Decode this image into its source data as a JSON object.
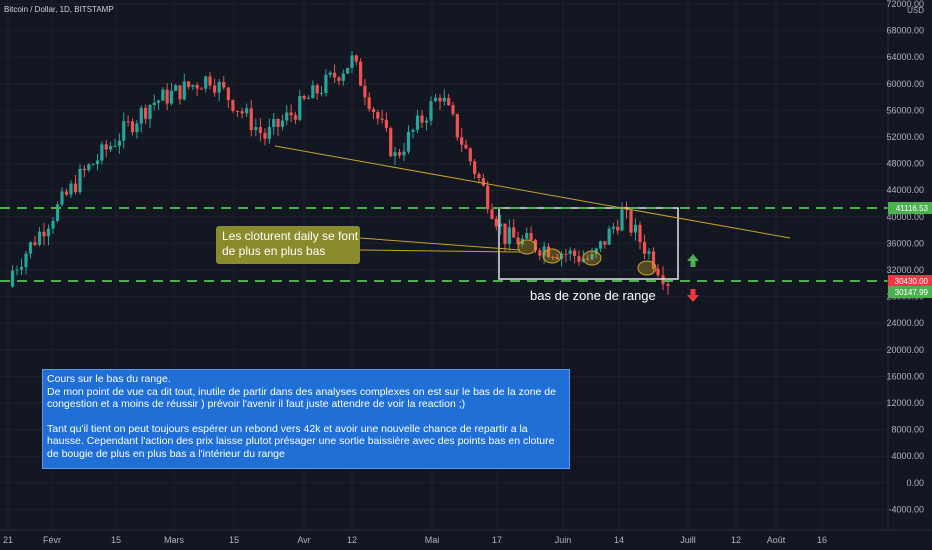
{
  "header": {
    "symbol": "Bitcoin / Dollar, 1D, BITSTAMP"
  },
  "price_axis": {
    "currency": "USD",
    "labels": [
      "72000.00",
      "68000.00",
      "64000.00",
      "60000.00",
      "56000.00",
      "52000.00",
      "48000.00",
      "44000.00",
      "40000.00",
      "36000.00",
      "32000.00",
      "28000.00",
      "24000.00",
      "20000.00",
      "16000.00",
      "12000.00",
      "8000.00",
      "4000.00",
      "0.00",
      "-4000.00"
    ],
    "badges": [
      {
        "text": "41116.53",
        "color": "#4caf50"
      },
      {
        "text": "30430.00",
        "color": "#f23645"
      },
      {
        "text": "30147.99",
        "color": "#4caf50"
      }
    ]
  },
  "time_axis": {
    "labels": [
      "21",
      "Févr",
      "15",
      "Mars",
      "15",
      "Avr",
      "12",
      "Mai",
      "17",
      "Juin",
      "14",
      "Juill",
      "12",
      "Août",
      "16"
    ]
  },
  "annotations": {
    "callout": "Les cloturent daily se font de plus en plus bas",
    "range_label": "bas de zone de range"
  },
  "note": {
    "title": "Cours sur le bas du range.",
    "para1": "De mon point de vue ca dit tout, inutile de partir dans des analyses complexes on est sur le bas de la zone de congestion et a moins de réussir ) prévoir l'avenir il faut juste attendre de voir la reaction ;)",
    "para2": "Tant qu'il tient on peut toujours espérer un rebond vers 42k et avoir une nouvelle chance de repartir a la hausse. Cependant l'action des prix laisse plutot présager une sortie baissière avec des points bas en cloture de bougie de plus en plus bas a l'intérieur du range"
  },
  "colors": {
    "up": "#26a69a",
    "down": "#ef5350",
    "level": "#4caf50",
    "trendline": "#c9a227",
    "callout_bg": "#8b8a2c",
    "note_bg": "#1f6fd6"
  },
  "chart_data": {
    "type": "candlestick",
    "title": "Bitcoin / Dollar, 1D, BITSTAMP",
    "ylim": [
      -6000,
      74000
    ],
    "levels": [
      41116.53,
      30430.0
    ],
    "key_closes": [
      {
        "x": "Janv 21",
        "close": 31000
      },
      {
        "x": "Févr 8",
        "close": 46000
      },
      {
        "x": "Févr 21",
        "close": 57000
      },
      {
        "x": "Mars 13",
        "close": 61000
      },
      {
        "x": "Mars 25",
        "close": 52000
      },
      {
        "x": "Avr 13",
        "close": 63500
      },
      {
        "x": "Avr 25",
        "close": 49000
      },
      {
        "x": "Mai 8",
        "close": 58500
      },
      {
        "x": "Mai 19",
        "close": 37000
      },
      {
        "x": "Juin 8",
        "close": 33500
      },
      {
        "x": "Juin 14",
        "close": 40500
      },
      {
        "x": "Juin 22",
        "close": 32500
      },
      {
        "x": "Juin 26",
        "close": 30400
      }
    ],
    "trendline": [
      {
        "x": "Mars 26",
        "y": 50800
      },
      {
        "x": "Juill 24",
        "y": 37500
      }
    ]
  }
}
